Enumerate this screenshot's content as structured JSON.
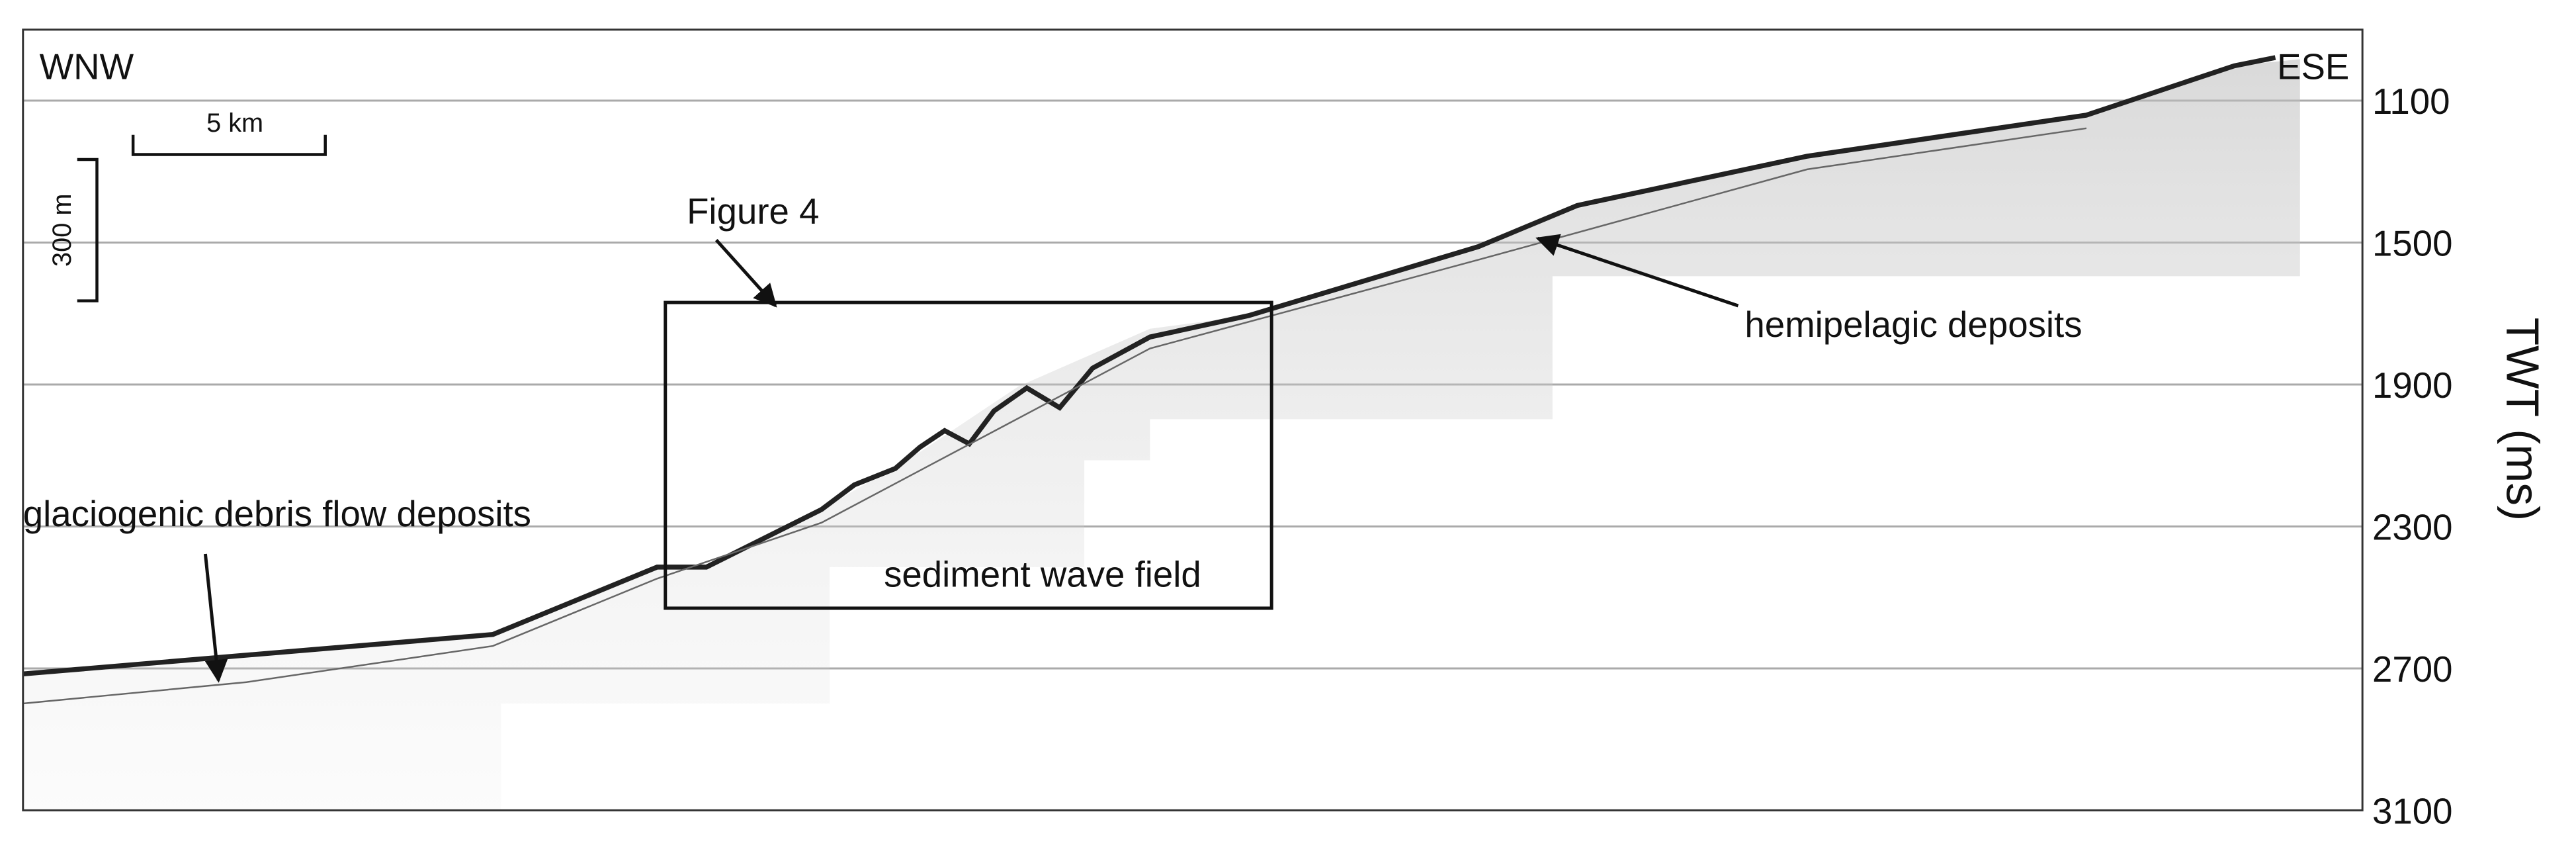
{
  "chart_data": {
    "type": "seismic-profile",
    "y_label": "TWT (ms)",
    "ylim": [
      900,
      3100
    ],
    "y_inverted": true,
    "yticks": [
      1100,
      1500,
      1900,
      2300,
      2700,
      3100
    ],
    "grid": true,
    "direction_left": "WNW",
    "direction_right": "ESE",
    "scale_horizontal": "5 km",
    "scale_vertical": "300 m",
    "annotations": {
      "figure": "Figure 4",
      "sediment_waves": "sediment wave field",
      "hemipelagic": "hemipelagic deposits",
      "glaciogenic": "glaciogenic debris flow deposits"
    }
  }
}
